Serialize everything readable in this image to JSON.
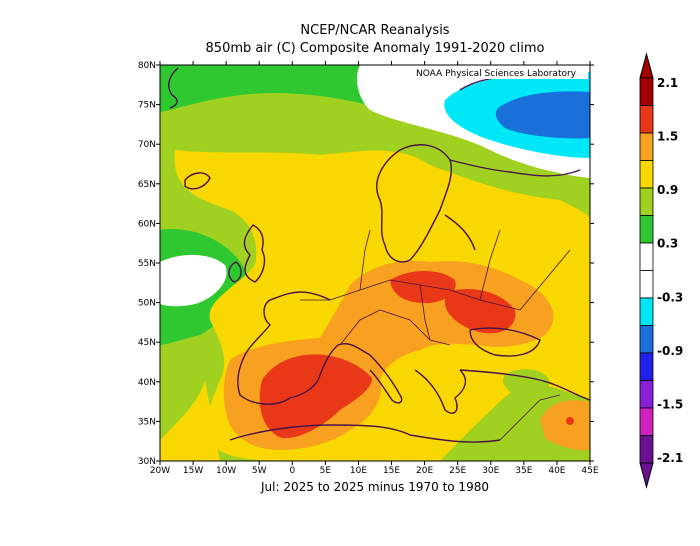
{
  "title": {
    "line1": "NCEP/NCAR Reanalysis",
    "line2": "850mb air (C) Composite Anomaly 1991-2020 climo"
  },
  "credit": "NOAA Physical Sciences Laboratory",
  "subtitle": "Jul: 2025 to 2025 minus 1970 to 1980",
  "map": {
    "lon_range": [
      -20,
      45
    ],
    "lat_range": [
      30,
      80
    ],
    "lon_ticks": [
      "20W",
      "15W",
      "10W",
      "5W",
      "0",
      "5E",
      "10E",
      "15E",
      "20E",
      "25E",
      "30E",
      "35E",
      "40E",
      "45E"
    ],
    "lat_ticks": [
      "30N",
      "35N",
      "40N",
      "45N",
      "50N",
      "55N",
      "60N",
      "65N",
      "70N",
      "75N",
      "80N"
    ]
  },
  "colorbar": {
    "levels": [
      "2.1",
      "1.5",
      "0.9",
      "0.3",
      "-0.3",
      "-0.9",
      "-1.5",
      "-2.1"
    ],
    "colors": [
      "#a00000",
      "#e83818",
      "#f8a020",
      "#f8d800",
      "#a0d020",
      "#30c830",
      "#ffffff",
      "#ffffff",
      "#00e8f8",
      "#1870d8",
      "#2020e8",
      "#8820d8",
      "#d020c0",
      "#6a1090"
    ]
  },
  "palette": {
    "land_outline": "#4a1248",
    "dark_red": "#a00000",
    "red": "#e83818",
    "orange": "#f8a020",
    "yellow": "#f8d800",
    "yellow_green": "#a0d020",
    "green": "#30c830",
    "white": "#ffffff",
    "cyan": "#00e8f8",
    "blue": "#1870d8"
  }
}
